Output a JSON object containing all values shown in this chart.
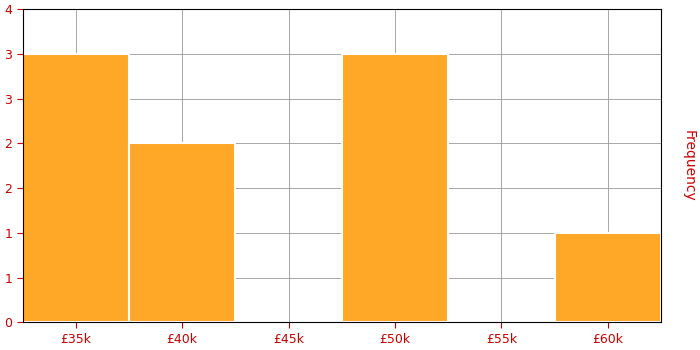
{
  "bin_edges": [
    32500,
    37500,
    42500,
    47500,
    52500,
    57500,
    62500
  ],
  "frequencies": [
    3,
    2,
    0,
    3,
    0,
    1
  ],
  "bar_color": "#FFA726",
  "bar_edgecolor": "#FFFFFF",
  "bar_linewidth": 1.5,
  "ylabel": "Frequency",
  "ylim": [
    0,
    4
  ],
  "ytick_labels": [
    "0",
    "1",
    "1",
    "2",
    "2",
    "3",
    "3",
    "4"
  ],
  "xtick_positions": [
    35000,
    40000,
    45000,
    50000,
    55000,
    60000
  ],
  "xtick_labels": [
    "£35k",
    "£40k",
    "£45k",
    "£50k",
    "£55k",
    "£60k"
  ],
  "grid_color": "#999999",
  "grid_linewidth": 0.6,
  "background_color": "#FFFFFF",
  "tick_color": "#CC0000",
  "ylabel_color": "#CC0000",
  "figsize": [
    7.0,
    3.5
  ],
  "dpi": 100,
  "xlim": [
    32500,
    62500
  ]
}
